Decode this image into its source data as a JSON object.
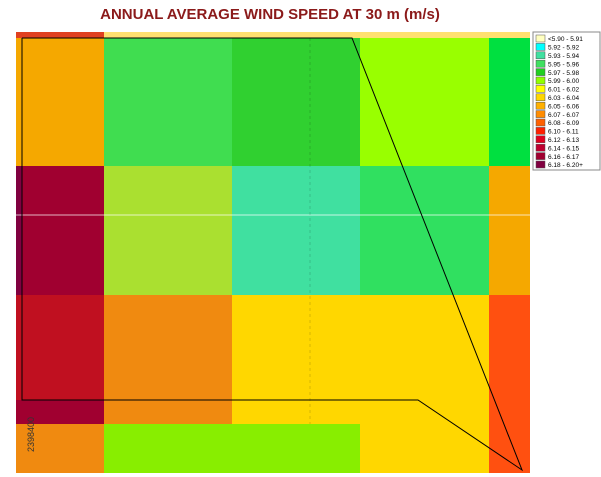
{
  "title": "ANNUAL AVERAGE WIND SPEED AT 30 m (m/s)",
  "grid_label": "2398400",
  "legend": [
    {
      "label": "<5.90 - 5.91",
      "color": "#ffffc0"
    },
    {
      "label": "5.92 - 5.92",
      "color": "#00ffff"
    },
    {
      "label": "5.93 - 5.94",
      "color": "#40e0a0"
    },
    {
      "label": "5.95 - 5.96",
      "color": "#40e060"
    },
    {
      "label": "5.97 - 5.98",
      "color": "#20d020"
    },
    {
      "label": "5.99 - 6.00",
      "color": "#90ff00"
    },
    {
      "label": "6.01 - 6.02",
      "color": "#ffff00"
    },
    {
      "label": "6.03 - 6.04",
      "color": "#ffd700"
    },
    {
      "label": "6.05 - 6.06",
      "color": "#ffb000"
    },
    {
      "label": "6.07 - 6.07",
      "color": "#ff8c00"
    },
    {
      "label": "6.08 - 6.09",
      "color": "#ff6000"
    },
    {
      "label": "6.10 - 6.11",
      "color": "#ff2000"
    },
    {
      "label": "6.12 - 6.13",
      "color": "#e00020"
    },
    {
      "label": "6.14 - 6.15",
      "color": "#c00030"
    },
    {
      "label": "6.16 - 6.17",
      "color": "#a00030"
    },
    {
      "label": "6.18 - 6.20+",
      "color": "#800040"
    }
  ],
  "cells": [
    [
      "#f5a800",
      "#40dd50",
      "#30d030",
      "#99ff00",
      "#00e040"
    ],
    [
      "#a00030",
      "#aae030",
      "#40e0a0",
      "#30e060",
      "#f5a800"
    ],
    [
      "#c01020",
      "#f08a10",
      "#ffd700",
      "#ffd700",
      "#ff5010"
    ],
    [
      "#a00030",
      "#f08a10",
      "#ffd700",
      "#ffd700",
      "#ff5010"
    ],
    [
      "#f08a10",
      "#88ee00",
      "#88ee00",
      "#ffd700",
      "#ff5010"
    ]
  ]
}
